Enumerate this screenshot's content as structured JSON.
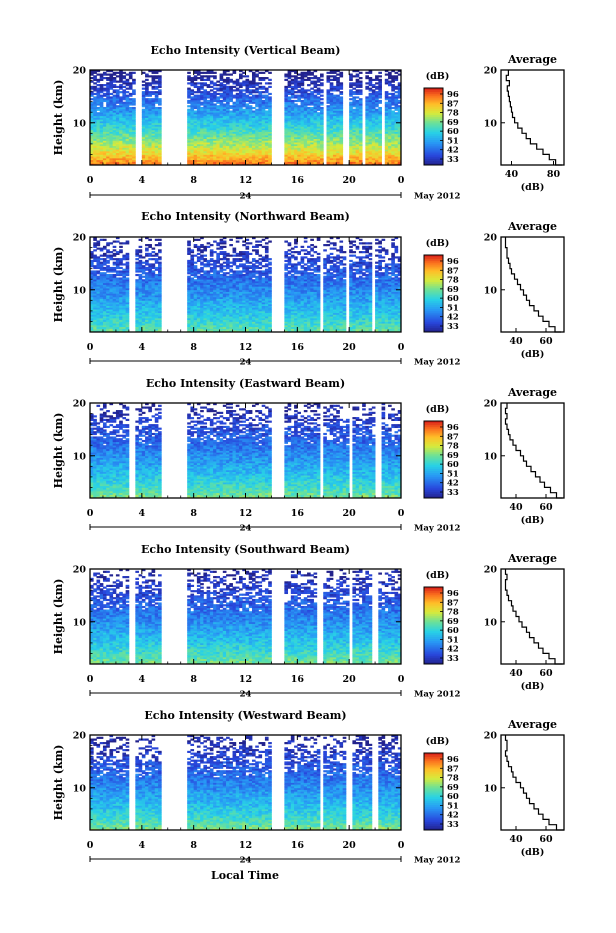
{
  "footer": {
    "x_axis_label": "Local Time"
  },
  "chart_data": [
    {
      "type": "heatmap",
      "title": "Echo Intensity (Vertical Beam)",
      "ylabel": "Height (km)",
      "xlabel": "",
      "x_ticks": [
        "0",
        "4",
        "8",
        "12",
        "16",
        "20",
        "0"
      ],
      "date_label": "24",
      "month_label": "May 2012",
      "xlim": [
        0,
        24
      ],
      "ylim": [
        2,
        20
      ],
      "y_ticks": [
        "10",
        "20"
      ],
      "colorbar": {
        "unit": "(dB)",
        "ticks": [
          "96",
          "87",
          "78",
          "69",
          "60",
          "51",
          "42",
          "33"
        ],
        "range": [
          33,
          96
        ]
      },
      "surface_db": 92,
      "top_db": 30,
      "no_data_intervals_h": [
        [
          3.6,
          3.9
        ],
        [
          5.4,
          7.6
        ],
        [
          14.0,
          15.1
        ],
        [
          17.9,
          18.2
        ],
        [
          19.6,
          19.9
        ],
        [
          21.0,
          21.3
        ],
        [
          22.5,
          22.7
        ]
      ],
      "average_profile": {
        "title": "Average",
        "xlabel": "(dB)",
        "x_ticks": [
          "40",
          "80"
        ],
        "y_ticks": [
          "10",
          "20"
        ],
        "xlim": [
          30,
          90
        ],
        "ylim": [
          2,
          20
        ],
        "heights_km": [
          2,
          3,
          4,
          5,
          6,
          7,
          8,
          9,
          10,
          11,
          12,
          13,
          14,
          15,
          16,
          17,
          18,
          19,
          20
        ],
        "values_db": [
          88,
          82,
          76,
          70,
          64,
          58,
          54,
          50,
          46,
          43,
          41,
          40,
          39,
          38,
          37,
          36,
          38,
          35,
          37
        ]
      }
    },
    {
      "type": "heatmap",
      "title": "Echo Intensity (Northward Beam)",
      "ylabel": "Height (km)",
      "xlabel": "",
      "x_ticks": [
        "0",
        "4",
        "8",
        "12",
        "16",
        "20",
        "0"
      ],
      "date_label": "24",
      "month_label": "May 2012",
      "xlim": [
        0,
        24
      ],
      "ylim": [
        2,
        20
      ],
      "y_ticks": [
        "10",
        "20"
      ],
      "colorbar": {
        "unit": "(dB)",
        "ticks": [
          "96",
          "87",
          "78",
          "69",
          "60",
          "51",
          "42",
          "33"
        ],
        "range": [
          33,
          96
        ]
      },
      "surface_db": 68,
      "top_db": 33,
      "no_data_intervals_h": [
        [
          2.9,
          3.6
        ],
        [
          5.5,
          7.6
        ],
        [
          13.9,
          14.9
        ],
        [
          17.7,
          18.0
        ],
        [
          19.8,
          20.1
        ],
        [
          21.7,
          22.1
        ]
      ],
      "average_profile": {
        "title": "Average",
        "xlabel": "(dB)",
        "x_ticks": [
          "40",
          "60"
        ],
        "y_ticks": [
          "10",
          "20"
        ],
        "xlim": [
          30,
          72
        ],
        "ylim": [
          2,
          20
        ],
        "heights_km": [
          2,
          3,
          4,
          5,
          6,
          7,
          8,
          9,
          10,
          11,
          12,
          13,
          14,
          15,
          16,
          17,
          18,
          19,
          20
        ],
        "values_db": [
          70,
          66,
          62,
          58,
          55,
          52,
          49,
          47,
          45,
          43,
          41,
          39,
          37,
          36,
          35,
          34,
          34,
          33,
          33
        ]
      }
    },
    {
      "type": "heatmap",
      "title": "Echo Intensity (Eastward Beam)",
      "ylabel": "Height (km)",
      "xlabel": "",
      "x_ticks": [
        "0",
        "4",
        "8",
        "12",
        "16",
        "20",
        "0"
      ],
      "date_label": "24",
      "month_label": "May 2012",
      "xlim": [
        0,
        24
      ],
      "ylim": [
        2,
        20
      ],
      "y_ticks": [
        "10",
        "20"
      ],
      "colorbar": {
        "unit": "(dB)",
        "ticks": [
          "96",
          "87",
          "78",
          "69",
          "60",
          "51",
          "42",
          "33"
        ],
        "range": [
          33,
          96
        ]
      },
      "surface_db": 70,
      "top_db": 33,
      "no_data_intervals_h": [
        [
          3.0,
          3.6
        ],
        [
          5.4,
          7.6
        ],
        [
          14.0,
          15.0
        ],
        [
          17.7,
          18.0
        ],
        [
          19.9,
          20.3
        ],
        [
          22.0,
          22.5
        ]
      ],
      "average_profile": {
        "title": "Average",
        "xlabel": "(dB)",
        "x_ticks": [
          "40",
          "60"
        ],
        "y_ticks": [
          "10",
          "20"
        ],
        "xlim": [
          30,
          72
        ],
        "ylim": [
          2,
          20
        ],
        "heights_km": [
          2,
          3,
          4,
          5,
          6,
          7,
          8,
          9,
          10,
          11,
          12,
          13,
          14,
          15,
          16,
          17,
          18,
          19,
          20
        ],
        "values_db": [
          71,
          67,
          63,
          59,
          56,
          53,
          50,
          47,
          45,
          43,
          40,
          38,
          36,
          35,
          34,
          33,
          34,
          33,
          34
        ]
      }
    },
    {
      "type": "heatmap",
      "title": "Echo Intensity (Southward Beam)",
      "ylabel": "Height (km)",
      "xlabel": "",
      "x_ticks": [
        "0",
        "4",
        "8",
        "12",
        "16",
        "20",
        "0"
      ],
      "date_label": "24",
      "month_label": "May 2012",
      "xlim": [
        0,
        24
      ],
      "ylim": [
        2,
        20
      ],
      "y_ticks": [
        "10",
        "20"
      ],
      "colorbar": {
        "unit": "(dB)",
        "ticks": [
          "96",
          "87",
          "78",
          "69",
          "60",
          "51",
          "42",
          "33"
        ],
        "range": [
          33,
          96
        ]
      },
      "surface_db": 70,
      "top_db": 33,
      "no_data_intervals_h": [
        [
          3.0,
          3.6
        ],
        [
          5.5,
          7.6
        ],
        [
          14.0,
          15.0
        ],
        [
          17.5,
          18.0
        ],
        [
          19.9,
          20.3
        ],
        [
          21.8,
          22.2
        ]
      ],
      "average_profile": {
        "title": "Average",
        "xlabel": "(dB)",
        "x_ticks": [
          "40",
          "60"
        ],
        "y_ticks": [
          "10",
          "20"
        ],
        "xlim": [
          30,
          72
        ],
        "ylim": [
          2,
          20
        ],
        "heights_km": [
          2,
          3,
          4,
          5,
          6,
          7,
          8,
          9,
          10,
          11,
          12,
          13,
          14,
          15,
          16,
          17,
          18,
          19,
          20
        ],
        "values_db": [
          71,
          66,
          62,
          58,
          55,
          52,
          49,
          47,
          44,
          42,
          40,
          38,
          37,
          35,
          34,
          33,
          33,
          34,
          33
        ]
      }
    },
    {
      "type": "heatmap",
      "title": "Echo Intensity (Westward Beam)",
      "ylabel": "Height (km)",
      "xlabel": "",
      "x_ticks": [
        "0",
        "4",
        "8",
        "12",
        "16",
        "20",
        "0"
      ],
      "date_label": "24",
      "month_label": "May 2012",
      "xlim": [
        0,
        24
      ],
      "ylim": [
        2,
        20
      ],
      "y_ticks": [
        "10",
        "20"
      ],
      "colorbar": {
        "unit": "(dB)",
        "ticks": [
          "96",
          "87",
          "78",
          "69",
          "60",
          "51",
          "42",
          "33"
        ],
        "range": [
          33,
          96
        ]
      },
      "surface_db": 70,
      "top_db": 33,
      "no_data_intervals_h": [
        [
          3.0,
          3.6
        ],
        [
          5.5,
          7.6
        ],
        [
          14.0,
          15.0
        ],
        [
          17.7,
          18.0
        ],
        [
          19.8,
          20.2
        ],
        [
          21.8,
          22.2
        ]
      ],
      "average_profile": {
        "title": "Average",
        "xlabel": "(dB)",
        "x_ticks": [
          "40",
          "60"
        ],
        "y_ticks": [
          "10",
          "20"
        ],
        "xlim": [
          30,
          72
        ],
        "ylim": [
          2,
          20
        ],
        "heights_km": [
          2,
          3,
          4,
          5,
          6,
          7,
          8,
          9,
          10,
          11,
          12,
          13,
          14,
          15,
          16,
          17,
          18,
          19,
          20
        ],
        "values_db": [
          72,
          67,
          62,
          58,
          55,
          52,
          49,
          47,
          45,
          43,
          40,
          38,
          37,
          35,
          34,
          33,
          34,
          34,
          33
        ]
      }
    }
  ]
}
